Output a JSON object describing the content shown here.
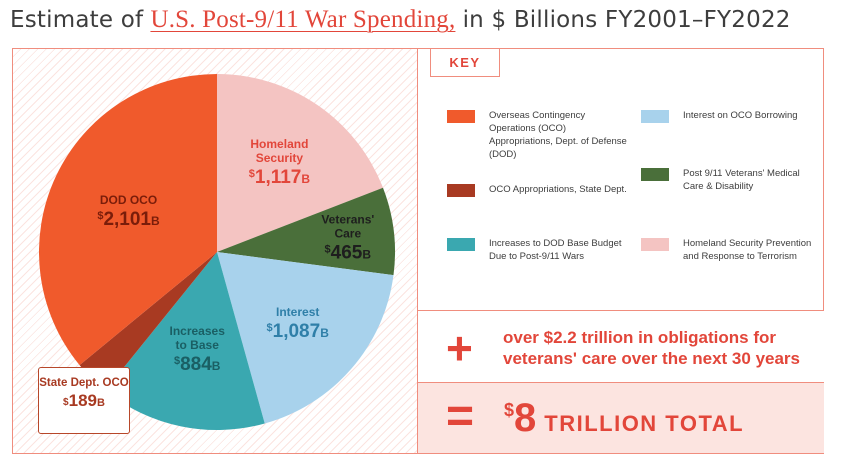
{
  "title": {
    "prefix": "Estimate of",
    "highlight": "U.S. Post-9/11 War Spending,",
    "suffix": "in $ Billions FY2001–FY2022"
  },
  "key_label": "KEY",
  "legend": [
    {
      "label": "Overseas Contingency Operations (OCO) Appropriations, Dept. of Defense (DOD)",
      "color": "#f05a2c"
    },
    {
      "label": "OCO Appropriations, State Dept.",
      "color": "#a83a22"
    },
    {
      "label": "Increases to DOD Base Budget Due to Post-9/11 Wars",
      "color": "#3aa8b0"
    },
    {
      "label": "Interest on OCO Borrowing",
      "color": "#a8d2ec"
    },
    {
      "label": "Post 9/11 Veterans' Medical Care & Disability",
      "color": "#4a6f3a"
    },
    {
      "label": "Homeland Security Prevention and Response to Terrorism",
      "color": "#f4c4c2"
    }
  ],
  "obligations": {
    "symbol": "+",
    "text": "over $2.2 trillion in obligations for veterans' care over the next 30 years"
  },
  "total": {
    "symbol": "=",
    "dollar": "$",
    "amount": "8",
    "word": "TRILLION TOTAL"
  },
  "chart_data": {
    "type": "pie",
    "title": "Estimate of U.S. Post-9/11 War Spending, in $ Billions FY2001–FY2022",
    "unit": "B",
    "slices": [
      {
        "label": "Homeland Security",
        "value": 1117,
        "value_text": "1,117",
        "color": "#f4c4c2",
        "text_color": "#e2463a"
      },
      {
        "label": "Veterans' Care",
        "value": 465,
        "value_text": "465",
        "color": "#4a6f3a",
        "text_color": "#1e1e1e"
      },
      {
        "label": "Interest",
        "value": 1087,
        "value_text": "1,087",
        "color": "#a8d2ec",
        "text_color": "#2f7fa8"
      },
      {
        "label": "Increases to Base",
        "value": 884,
        "value_text": "884",
        "color": "#3aa8b0",
        "text_color": "#1a5f64"
      },
      {
        "label": "State Dept. OCO",
        "value": 189,
        "value_text": "189",
        "color": "#a83a22",
        "text_color": "#a83a22"
      },
      {
        "label": "DOD OCO",
        "value": 2101,
        "value_text": "2,101",
        "color": "#f05a2c",
        "text_color": "#7a1d0a"
      }
    ]
  }
}
